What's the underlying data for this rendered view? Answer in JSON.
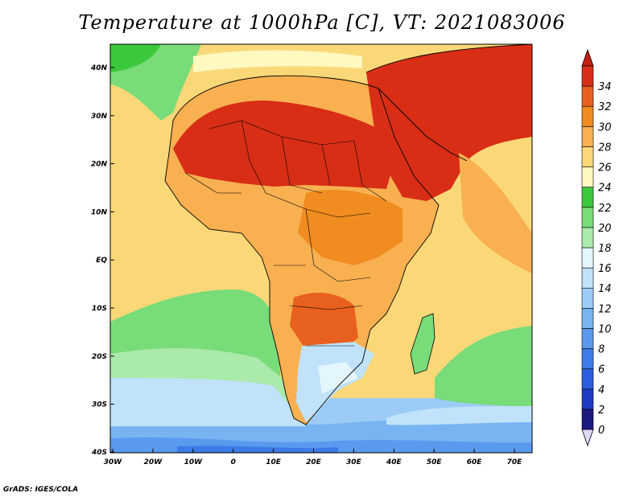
{
  "title": "Temperature at 1000hPa [C], VT: 2021083006",
  "credit": "GrADS: IGES/COLA",
  "lat_labels": [
    "40N",
    "30N",
    "20N",
    "10N",
    "EQ",
    "10S",
    "20S",
    "30S",
    "40S"
  ],
  "lon_labels": [
    "30W",
    "20W",
    "10W",
    "0",
    "10E",
    "20E",
    "30E",
    "40E",
    "50E",
    "60E",
    "70E"
  ],
  "colorbar": {
    "levels": [
      "0",
      "2",
      "4",
      "6",
      "8",
      "10",
      "12",
      "14",
      "16",
      "18",
      "20",
      "22",
      "24",
      "26",
      "28",
      "30",
      "32",
      "34"
    ],
    "colors": [
      "#e0d8f8",
      "#1a1a80",
      "#1e3cc8",
      "#2a5ee0",
      "#3c7ce8",
      "#5a9aee",
      "#78b4f2",
      "#9cccf6",
      "#c0e2fa",
      "#e2f6fc",
      "#aaeaaa",
      "#78dc78",
      "#3cc83c",
      "#fff8c0",
      "#fad878",
      "#f8b050",
      "#f08c20",
      "#e8601e",
      "#d82e16",
      "#c41e10"
    ]
  },
  "map_colors": {
    "sea": "#fad878",
    "africa": "#f8b050",
    "sahara": "#d82e16",
    "arabia": "#d82e16",
    "warm_core": "#f08c20",
    "south_ocean": "#78b4f2",
    "green": "#78dc78",
    "cool_south": "#c0e2fa",
    "land_south": "#e8601e",
    "mad": "#78dc78"
  }
}
